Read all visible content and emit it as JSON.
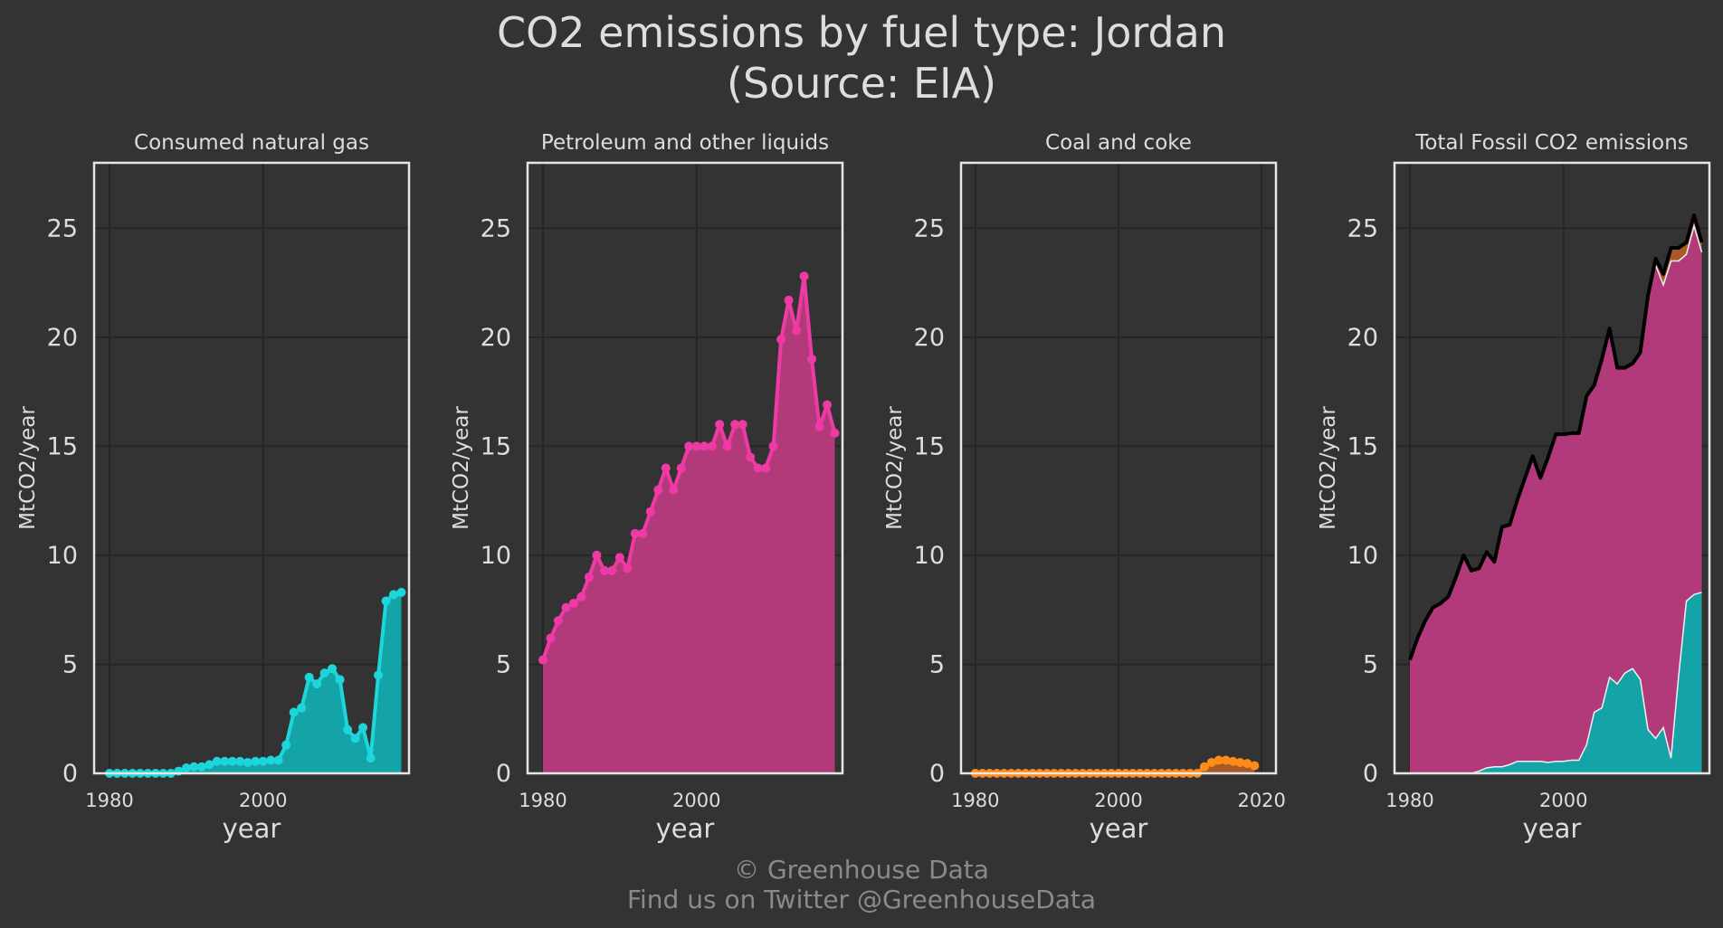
{
  "figure": {
    "title_line1": "CO2 emissions by fuel type: Jordan",
    "title_line2": "(Source: EIA)",
    "footer_line1": "© Greenhouse Data",
    "footer_line2": "Find us on Twitter @GreenhouseData",
    "background": "#333333",
    "text_color": "#dddddd",
    "grid_color": "#262626",
    "frame_color": "#e6e6e6"
  },
  "chart_data": [
    {
      "type": "area",
      "title": "Consumed natural gas",
      "xlabel": "year",
      "ylabel": "MtCO2/year",
      "xlim": [
        1978,
        2019
      ],
      "ylim": [
        0,
        28
      ],
      "xticks": [
        1980,
        2000
      ],
      "yticks": [
        0,
        5,
        10,
        15,
        20,
        25
      ],
      "grid": true,
      "color": "#1dd6dc",
      "fill_color": "#14a3a6",
      "markers": true,
      "series": [
        {
          "x": [
            1980,
            1981,
            1982,
            1983,
            1984,
            1985,
            1986,
            1987,
            1988,
            1989,
            1990,
            1991,
            1992,
            1993,
            1994,
            1995,
            1996,
            1997,
            1998,
            1999,
            2000,
            2001,
            2002,
            2003,
            2004,
            2005,
            2006,
            2007,
            2008,
            2009,
            2010,
            2011,
            2012,
            2013,
            2014,
            2015,
            2016,
            2017,
            2018
          ],
          "values": [
            0,
            0,
            0,
            0,
            0,
            0,
            0,
            0,
            0,
            0.1,
            0.25,
            0.3,
            0.3,
            0.4,
            0.55,
            0.55,
            0.55,
            0.55,
            0.5,
            0.55,
            0.55,
            0.6,
            0.6,
            1.3,
            2.8,
            3.0,
            4.4,
            4.1,
            4.6,
            4.8,
            4.3,
            2.0,
            1.6,
            2.1,
            0.7,
            4.5,
            7.9,
            8.2,
            8.3
          ]
        }
      ]
    },
    {
      "type": "area",
      "title": "Petroleum and other liquids",
      "xlabel": "year",
      "ylabel": "MtCO2/year",
      "xlim": [
        1978,
        2019
      ],
      "ylim": [
        0,
        28
      ],
      "xticks": [
        1980,
        2000
      ],
      "yticks": [
        0,
        5,
        10,
        15,
        20,
        25
      ],
      "grid": true,
      "color": "#ef3aa6",
      "fill_color": "#b23a7a",
      "markers": true,
      "series": [
        {
          "x": [
            1980,
            1981,
            1982,
            1983,
            1984,
            1985,
            1986,
            1987,
            1988,
            1989,
            1990,
            1991,
            1992,
            1993,
            1994,
            1995,
            1996,
            1997,
            1998,
            1999,
            2000,
            2001,
            2002,
            2003,
            2004,
            2005,
            2006,
            2007,
            2008,
            2009,
            2010,
            2011,
            2012,
            2013,
            2014,
            2015,
            2016,
            2017,
            2018
          ],
          "values": [
            5.2,
            6.2,
            7.0,
            7.6,
            7.8,
            8.1,
            9.0,
            10.0,
            9.3,
            9.3,
            9.9,
            9.4,
            11.0,
            11.0,
            12.0,
            13.0,
            14.0,
            13.0,
            14.0,
            15.0,
            15.0,
            15.0,
            15.0,
            16.0,
            15.0,
            16.0,
            16.0,
            14.5,
            14.0,
            14.0,
            15.0,
            19.9,
            21.7,
            20.3,
            22.8,
            19.0,
            15.9,
            16.9,
            15.6
          ]
        }
      ]
    },
    {
      "type": "area",
      "title": "Coal and coke",
      "xlabel": "year",
      "ylabel": "MtCO2/year",
      "xlim": [
        1978,
        2022
      ],
      "ylim": [
        0,
        28
      ],
      "xticks": [
        1980,
        2000,
        2020
      ],
      "yticks": [
        0,
        5,
        10,
        15,
        20,
        25
      ],
      "grid": true,
      "color": "#ff8c1a",
      "fill_color": "#a85a26",
      "markers": true,
      "series": [
        {
          "x": [
            1980,
            1981,
            1982,
            1983,
            1984,
            1985,
            1986,
            1987,
            1988,
            1989,
            1990,
            1991,
            1992,
            1993,
            1994,
            1995,
            1996,
            1997,
            1998,
            1999,
            2000,
            2001,
            2002,
            2003,
            2004,
            2005,
            2006,
            2007,
            2008,
            2009,
            2010,
            2011,
            2012,
            2013,
            2014,
            2015,
            2016,
            2017,
            2018,
            2019
          ],
          "values": [
            0,
            0,
            0,
            0,
            0,
            0,
            0,
            0,
            0,
            0,
            0,
            0,
            0,
            0,
            0,
            0,
            0,
            0,
            0,
            0,
            0,
            0,
            0,
            0,
            0,
            0,
            0,
            0,
            0,
            0,
            0,
            0,
            0.3,
            0.5,
            0.6,
            0.6,
            0.55,
            0.5,
            0.45,
            0.35
          ]
        }
      ]
    },
    {
      "type": "area",
      "title": "Total Fossil CO2 emissions",
      "xlabel": "year",
      "ylabel": "MtCO2/year",
      "xlim": [
        1978,
        2019
      ],
      "ylim": [
        0,
        28
      ],
      "xticks": [
        1980,
        2000
      ],
      "yticks": [
        0,
        5,
        10,
        15,
        20,
        25
      ],
      "grid": true,
      "stacked": true,
      "total_color": "#000000",
      "edge_color": "#f0f0f0",
      "stack_order": [
        "coal",
        "petroleum",
        "gas"
      ],
      "stack_colors": {
        "coal": "#a85a26",
        "petroleum": "#b23a7a",
        "gas": "#14a3a6"
      },
      "source_panels": {
        "gas": 0,
        "petroleum": 1,
        "coal": 2
      }
    }
  ]
}
